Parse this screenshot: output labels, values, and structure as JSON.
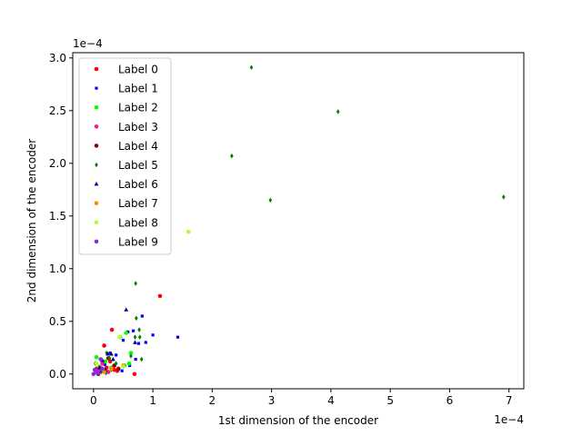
{
  "chart_data": {
    "type": "scatter",
    "title": "",
    "xlabel": "1st dimension of the encoder",
    "ylabel": "2nd dimension of the encoder",
    "x_offset_label": "1e−4",
    "y_offset_label": "1e−4",
    "xlim": [
      -0.35,
      7.25
    ],
    "ylim": [
      -0.14,
      3.05
    ],
    "x_ticks": [
      0,
      1,
      2,
      3,
      4,
      5,
      6,
      7
    ],
    "y_ticks": [
      0.0,
      0.5,
      1.0,
      1.5,
      2.0,
      2.5,
      3.0
    ],
    "x_tick_labels": [
      "0",
      "1",
      "2",
      "3",
      "4",
      "5",
      "6",
      "7"
    ],
    "y_tick_labels": [
      "0.0",
      "0.5",
      "1.0",
      "1.5",
      "2.0",
      "2.5",
      "3.0"
    ],
    "grid": false,
    "legend_position": "top-left",
    "series": [
      {
        "name": "Label 0",
        "color": "#ff0000",
        "marker": "circle",
        "points": [
          [
            1.12,
            0.74
          ],
          [
            0.31,
            0.42
          ],
          [
            0.18,
            0.27
          ],
          [
            0.69,
            0.0
          ],
          [
            0.05,
            0.05
          ],
          [
            0.12,
            0.02
          ],
          [
            0.22,
            0.06
          ],
          [
            0.35,
            0.04
          ],
          [
            0.28,
            0.12
          ],
          [
            0.4,
            0.03
          ]
        ]
      },
      {
        "name": "Label 1",
        "color": "#0000ff",
        "marker": "square",
        "points": [
          [
            1.42,
            0.35
          ],
          [
            1.0,
            0.37
          ],
          [
            0.82,
            0.55
          ],
          [
            0.67,
            0.41
          ],
          [
            0.76,
            0.29
          ],
          [
            0.58,
            0.4
          ],
          [
            0.88,
            0.3
          ],
          [
            0.5,
            0.32
          ],
          [
            0.71,
            0.14
          ],
          [
            0.61,
            0.08
          ],
          [
            0.48,
            0.03
          ],
          [
            0.38,
            0.18
          ],
          [
            0.28,
            0.2
          ],
          [
            0.19,
            0.09
          ],
          [
            0.1,
            0.03
          ]
        ]
      },
      {
        "name": "Label 2",
        "color": "#00ff00",
        "marker": "circle",
        "points": [
          [
            0.55,
            0.39
          ],
          [
            0.45,
            0.35
          ],
          [
            0.63,
            0.2
          ],
          [
            0.05,
            0.16
          ],
          [
            0.1,
            0.07
          ],
          [
            0.3,
            0.06
          ],
          [
            0.2,
            0.12
          ],
          [
            0.52,
            0.08
          ],
          [
            0.6,
            0.1
          ]
        ]
      },
      {
        "name": "Label 3",
        "color": "#ff1493",
        "marker": "circle",
        "points": [
          [
            0.08,
            0.04
          ],
          [
            0.15,
            0.1
          ],
          [
            0.25,
            0.02
          ],
          [
            0.04,
            0.02
          ],
          [
            0.12,
            0.06
          ]
        ]
      },
      {
        "name": "Label 4",
        "color": "#8b0000",
        "marker": "circle",
        "points": [
          [
            0.42,
            0.05
          ],
          [
            0.25,
            0.15
          ],
          [
            0.35,
            0.08
          ],
          [
            0.08,
            0.0
          ]
        ]
      },
      {
        "name": "Label 5",
        "color": "#008000",
        "marker": "diamond",
        "points": [
          [
            2.66,
            2.91
          ],
          [
            4.12,
            2.49
          ],
          [
            2.33,
            2.07
          ],
          [
            2.98,
            1.65
          ],
          [
            6.91,
            1.68
          ],
          [
            0.71,
            0.86
          ],
          [
            0.72,
            0.53
          ],
          [
            0.77,
            0.42
          ],
          [
            0.78,
            0.35
          ],
          [
            0.7,
            0.35
          ],
          [
            0.63,
            0.17
          ],
          [
            0.81,
            0.14
          ],
          [
            0.22,
            0.2
          ],
          [
            0.27,
            0.15
          ],
          [
            0.03,
            0.1
          ],
          [
            0.14,
            0.03
          ],
          [
            0.21,
            0.01
          ],
          [
            0.38,
            0.1
          ],
          [
            0.3,
            0.04
          ]
        ]
      },
      {
        "name": "Label 6",
        "color": "#00008b",
        "marker": "triangle",
        "points": [
          [
            0.55,
            0.61
          ],
          [
            0.3,
            0.19
          ],
          [
            0.33,
            0.14
          ],
          [
            0.15,
            0.13
          ],
          [
            0.1,
            0.06
          ],
          [
            0.2,
            0.04
          ],
          [
            0.7,
            0.3
          ],
          [
            0.24,
            0.19
          ]
        ]
      },
      {
        "name": "Label 7",
        "color": "#ff8c00",
        "marker": "circle",
        "points": [
          [
            0.5,
            0.08
          ],
          [
            0.3,
            0.05
          ],
          [
            0.18,
            0.02
          ]
        ]
      },
      {
        "name": "Label 8",
        "color": "#adff2f",
        "marker": "circle",
        "points": [
          [
            1.6,
            1.35
          ],
          [
            0.5,
            0.07
          ],
          [
            0.44,
            0.35
          ],
          [
            0.05,
            0.1
          ]
        ]
      },
      {
        "name": "Label 9",
        "color": "#8a2be2",
        "marker": "circle",
        "points": [
          [
            0.0,
            0.0
          ],
          [
            0.08,
            0.01
          ],
          [
            0.12,
            0.14
          ],
          [
            0.02,
            0.04
          ],
          [
            0.15,
            0.05
          ],
          [
            0.05,
            0.02
          ]
        ]
      }
    ]
  }
}
